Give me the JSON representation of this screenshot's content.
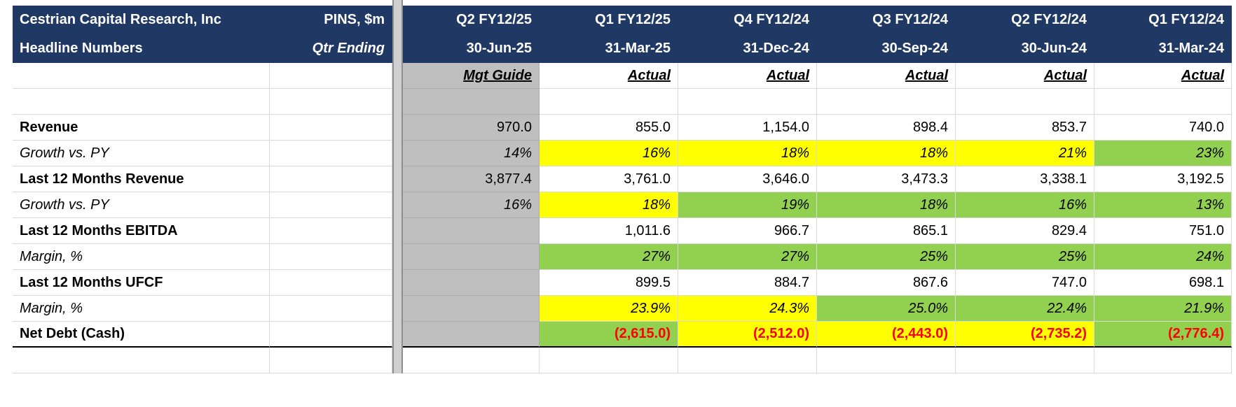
{
  "title_block": {
    "company": "Cestrian Capital Research, Inc",
    "subtitle": "Headline Numbers",
    "ticker": "PINS, $m",
    "qtr_ending": "Qtr Ending"
  },
  "columns": {
    "quarters": [
      "Q2 FY12/25",
      "Q1 FY12/25",
      "Q4 FY12/24",
      "Q3 FY12/24",
      "Q2 FY12/24",
      "Q1 FY12/24"
    ],
    "dates": [
      "30-Jun-25",
      "31-Mar-25",
      "31-Dec-24",
      "30-Sep-24",
      "30-Jun-24",
      "31-Mar-24"
    ],
    "types": [
      "Mgt Guide",
      "Actual",
      "Actual",
      "Actual",
      "Actual",
      "Actual"
    ]
  },
  "colors": {
    "header_navy": "#1F3864",
    "guide_gray": "#BFBFBF",
    "highlight_yellow": "#FFFF00",
    "highlight_green": "#92D050",
    "negative_red": "#FF0000"
  },
  "rows": [
    {
      "label": "Revenue",
      "label_style": "bold",
      "value_style": "number",
      "values": [
        "970.0",
        "855.0",
        "1,154.0",
        "898.4",
        "853.7",
        "740.0"
      ],
      "fills": [
        "gray",
        "white",
        "white",
        "white",
        "white",
        "white"
      ]
    },
    {
      "label": "Growth vs. PY",
      "label_style": "italic",
      "value_style": "percent",
      "values": [
        "14%",
        "16%",
        "18%",
        "18%",
        "21%",
        "23%"
      ],
      "fills": [
        "gray",
        "yellow",
        "yellow",
        "yellow",
        "yellow",
        "green"
      ]
    },
    {
      "label": "Last 12 Months Revenue",
      "label_style": "bold",
      "value_style": "number",
      "values": [
        "3,877.4",
        "3,761.0",
        "3,646.0",
        "3,473.3",
        "3,338.1",
        "3,192.5"
      ],
      "fills": [
        "gray",
        "white",
        "white",
        "white",
        "white",
        "white"
      ]
    },
    {
      "label": "Growth vs. PY",
      "label_style": "italic",
      "value_style": "percent",
      "values": [
        "16%",
        "18%",
        "19%",
        "18%",
        "16%",
        "13%"
      ],
      "fills": [
        "gray",
        "yellow",
        "green",
        "green",
        "green",
        "green"
      ]
    },
    {
      "label": "Last 12 Months EBITDA",
      "label_style": "bold",
      "value_style": "number",
      "values": [
        "",
        "1,011.6",
        "966.7",
        "865.1",
        "829.4",
        "751.0"
      ],
      "fills": [
        "gray",
        "white",
        "white",
        "white",
        "white",
        "white"
      ]
    },
    {
      "label": "Margin, %",
      "label_style": "italic",
      "value_style": "percent",
      "values": [
        "",
        "27%",
        "27%",
        "25%",
        "25%",
        "24%"
      ],
      "fills": [
        "gray",
        "green",
        "green",
        "green",
        "green",
        "green"
      ]
    },
    {
      "label": "Last 12 Months UFCF",
      "label_style": "bold",
      "value_style": "number",
      "values": [
        "",
        "899.5",
        "884.7",
        "867.6",
        "747.0",
        "698.1"
      ],
      "fills": [
        "gray",
        "white",
        "white",
        "white",
        "white",
        "white"
      ]
    },
    {
      "label": "Margin, %",
      "label_style": "italic",
      "value_style": "percent",
      "values": [
        "",
        "23.9%",
        "24.3%",
        "25.0%",
        "22.4%",
        "21.9%"
      ],
      "fills": [
        "gray",
        "yellow",
        "yellow",
        "green",
        "green",
        "green"
      ]
    },
    {
      "label": "Net Debt (Cash)",
      "label_style": "bold",
      "value_style": "negative",
      "values": [
        "",
        "(2,615.0)",
        "(2,512.0)",
        "(2,443.0)",
        "(2,735.2)",
        "(2,776.4)"
      ],
      "fills": [
        "gray",
        "green",
        "yellow",
        "yellow",
        "yellow",
        "green"
      ]
    }
  ]
}
